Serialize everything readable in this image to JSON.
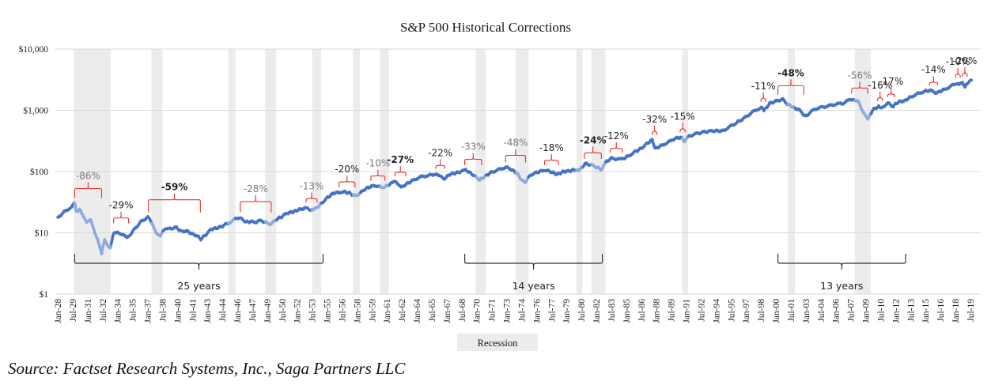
{
  "chart_data": {
    "type": "line",
    "title": "S&P 500 Historical Corrections",
    "xlabel": "",
    "ylabel": "",
    "yscale": "log",
    "ylim": [
      1,
      10000
    ],
    "yticks": [
      {
        "value": 10000,
        "label": "$10,000"
      },
      {
        "value": 1000,
        "label": "$1,000"
      },
      {
        "value": 100,
        "label": "$100"
      },
      {
        "value": 10,
        "label": "$10"
      },
      {
        "value": 1,
        "label": "$1"
      }
    ],
    "xlim": [
      1928.0,
      2019.5
    ],
    "xtick_labels": [
      "Jan-28",
      "Jul-29",
      "Jan-31",
      "Jul-32",
      "Jan-34",
      "Jul-35",
      "Jan-37",
      "Jul-38",
      "Jan-40",
      "Jul-41",
      "Jan-43",
      "Jul-44",
      "Jan-46",
      "Jul-47",
      "Jan-49",
      "Jul-50",
      "Jan-52",
      "Jul-53",
      "Jan-55",
      "Jul-56",
      "Jan-58",
      "Jul-59",
      "Jan-61",
      "Jul-62",
      "Jan-64",
      "Jul-65",
      "Jan-67",
      "Jul-68",
      "Jan-70",
      "Jul-71",
      "Jan-73",
      "Jul-74",
      "Jan-76",
      "Jul-77",
      "Jan-79",
      "Jul-80",
      "Jan-82",
      "Jul-83",
      "Jan-85",
      "Jul-86",
      "Jan-88",
      "Jul-89",
      "Jan-91",
      "Jul-92",
      "Jan-94",
      "Jul-95",
      "Jan-97",
      "Jul-98",
      "Jan-00",
      "Jul-01",
      "Jan-03",
      "Jul-04",
      "Jan-06",
      "Jul-07",
      "Jan-09",
      "Jul-10",
      "Jan-12",
      "Jul-13",
      "Jan-15",
      "Jul-16",
      "Jan-18",
      "Jul-19"
    ],
    "grid": true,
    "legend": {
      "position": "bottom-center",
      "entries": [
        {
          "label": "Recession",
          "color": "#ececec"
        }
      ]
    },
    "series": [
      {
        "name": "S&P 500",
        "color": "#4472c4",
        "drawdown_color": "#8ea9db",
        "points": [
          [
            1928.0,
            17.5
          ],
          [
            1928.5,
            21
          ],
          [
            1929.0,
            24
          ],
          [
            1929.4,
            27
          ],
          [
            1929.7,
            31
          ],
          [
            1929.85,
            22
          ],
          [
            1930.2,
            24
          ],
          [
            1930.5,
            20
          ],
          [
            1930.9,
            15
          ],
          [
            1931.3,
            16
          ],
          [
            1931.7,
            10
          ],
          [
            1932.0,
            8
          ],
          [
            1932.4,
            4.5
          ],
          [
            1932.7,
            8
          ],
          [
            1933.0,
            6
          ],
          [
            1933.3,
            5.8
          ],
          [
            1933.6,
            10
          ],
          [
            1934.0,
            10.5
          ],
          [
            1934.4,
            9.5
          ],
          [
            1934.9,
            8.5
          ],
          [
            1935.3,
            9.5
          ],
          [
            1935.8,
            12
          ],
          [
            1936.3,
            15
          ],
          [
            1936.8,
            17
          ],
          [
            1937.1,
            18
          ],
          [
            1937.5,
            14
          ],
          [
            1937.9,
            10
          ],
          [
            1938.3,
            9
          ],
          [
            1938.8,
            12
          ],
          [
            1939.3,
            11.5
          ],
          [
            1939.8,
            12.5
          ],
          [
            1940.4,
            10.5
          ],
          [
            1940.9,
            10.8
          ],
          [
            1941.5,
            9.5
          ],
          [
            1942.0,
            9
          ],
          [
            1942.3,
            7.8
          ],
          [
            1942.9,
            9.5
          ],
          [
            1943.4,
            11.5
          ],
          [
            1944.0,
            12
          ],
          [
            1944.6,
            13
          ],
          [
            1945.3,
            15
          ],
          [
            1946.0,
            17.5
          ],
          [
            1946.4,
            18
          ],
          [
            1946.8,
            15
          ],
          [
            1947.4,
            15.2
          ],
          [
            1947.9,
            15
          ],
          [
            1948.4,
            16
          ],
          [
            1948.9,
            14.5
          ],
          [
            1949.4,
            14
          ],
          [
            1949.9,
            16.5
          ],
          [
            1950.5,
            18.5
          ],
          [
            1951.0,
            21
          ],
          [
            1951.6,
            22
          ],
          [
            1952.2,
            24
          ],
          [
            1952.8,
            25
          ],
          [
            1953.0,
            25.5
          ],
          [
            1953.5,
            23
          ],
          [
            1953.9,
            25
          ],
          [
            1954.5,
            31
          ],
          [
            1955.0,
            37
          ],
          [
            1955.6,
            44
          ],
          [
            1956.2,
            46
          ],
          [
            1956.6,
            47
          ],
          [
            1957.2,
            45
          ],
          [
            1957.8,
            40
          ],
          [
            1958.3,
            44
          ],
          [
            1958.8,
            52
          ],
          [
            1959.4,
            57
          ],
          [
            1959.9,
            59
          ],
          [
            1960.4,
            55
          ],
          [
            1960.9,
            57
          ],
          [
            1961.5,
            65
          ],
          [
            1961.9,
            70
          ],
          [
            1962.4,
            55
          ],
          [
            1962.9,
            62
          ],
          [
            1963.5,
            70
          ],
          [
            1964.2,
            80
          ],
          [
            1964.9,
            85
          ],
          [
            1965.6,
            88
          ],
          [
            1966.0,
            93
          ],
          [
            1966.7,
            75
          ],
          [
            1967.3,
            90
          ],
          [
            1967.9,
            95
          ],
          [
            1968.5,
            100
          ],
          [
            1968.9,
            106
          ],
          [
            1969.5,
            92
          ],
          [
            1970.3,
            73
          ],
          [
            1970.9,
            85
          ],
          [
            1971.5,
            98
          ],
          [
            1972.2,
            107
          ],
          [
            1972.9,
            118
          ],
          [
            1973.4,
            110
          ],
          [
            1974.0,
            95
          ],
          [
            1974.6,
            70
          ],
          [
            1974.9,
            68
          ],
          [
            1975.4,
            88
          ],
          [
            1975.9,
            95
          ],
          [
            1976.5,
            102
          ],
          [
            1976.9,
            106
          ],
          [
            1977.5,
            98
          ],
          [
            1978.1,
            90
          ],
          [
            1978.7,
            100
          ],
          [
            1979.3,
            102
          ],
          [
            1979.9,
            108
          ],
          [
            1980.3,
            105
          ],
          [
            1980.9,
            135
          ],
          [
            1981.4,
            130
          ],
          [
            1981.9,
            120
          ],
          [
            1982.5,
            108
          ],
          [
            1982.9,
            140
          ],
          [
            1983.5,
            165
          ],
          [
            1984.2,
            160
          ],
          [
            1984.6,
            158
          ],
          [
            1985.2,
            180
          ],
          [
            1985.9,
            210
          ],
          [
            1986.5,
            240
          ],
          [
            1987.0,
            280
          ],
          [
            1987.6,
            330
          ],
          [
            1987.9,
            235
          ],
          [
            1988.5,
            265
          ],
          [
            1989.2,
            300
          ],
          [
            1989.9,
            350
          ],
          [
            1990.5,
            360
          ],
          [
            1990.8,
            310
          ],
          [
            1991.3,
            380
          ],
          [
            1992.0,
            415
          ],
          [
            1993.0,
            450
          ],
          [
            1994.0,
            465
          ],
          [
            1994.6,
            455
          ],
          [
            1995.3,
            530
          ],
          [
            1996.0,
            620
          ],
          [
            1996.8,
            740
          ],
          [
            1997.5,
            900
          ],
          [
            1998.2,
            1050
          ],
          [
            1998.6,
            1150
          ],
          [
            1998.8,
            990
          ],
          [
            1999.4,
            1300
          ],
          [
            2000.2,
            1450
          ],
          [
            2000.7,
            1500
          ],
          [
            2001.2,
            1250
          ],
          [
            2001.8,
            1100
          ],
          [
            2002.4,
            1000
          ],
          [
            2002.8,
            840
          ],
          [
            2003.2,
            850
          ],
          [
            2003.9,
            1050
          ],
          [
            2004.6,
            1120
          ],
          [
            2005.3,
            1180
          ],
          [
            2006.0,
            1260
          ],
          [
            2006.7,
            1300
          ],
          [
            2007.4,
            1480
          ],
          [
            2007.8,
            1520
          ],
          [
            2008.3,
            1350
          ],
          [
            2008.8,
            900
          ],
          [
            2009.2,
            700
          ],
          [
            2009.7,
            1020
          ],
          [
            2010.3,
            1150
          ],
          [
            2010.5,
            1050
          ],
          [
            2011.2,
            1320
          ],
          [
            2011.7,
            1150
          ],
          [
            2012.3,
            1380
          ],
          [
            2012.9,
            1420
          ],
          [
            2013.5,
            1650
          ],
          [
            2014.2,
            1850
          ],
          [
            2014.9,
            2050
          ],
          [
            2015.5,
            2100
          ],
          [
            2015.9,
            1930
          ],
          [
            2016.2,
            1950
          ],
          [
            2016.8,
            2150
          ],
          [
            2017.5,
            2450
          ],
          [
            2018.0,
            2750
          ],
          [
            2018.3,
            2600
          ],
          [
            2018.7,
            2900
          ],
          [
            2018.95,
            2400
          ],
          [
            2019.3,
            2900
          ],
          [
            2019.6,
            3100
          ]
        ]
      }
    ],
    "recessions": [
      [
        1929.6,
        1933.3
      ],
      [
        1937.4,
        1938.5
      ],
      [
        1945.1,
        1945.8
      ],
      [
        1948.8,
        1949.9
      ],
      [
        1953.5,
        1954.4
      ],
      [
        1957.6,
        1958.3
      ],
      [
        1960.3,
        1961.2
      ],
      [
        1969.9,
        1970.9
      ],
      [
        1973.9,
        1975.2
      ],
      [
        1980.0,
        1980.6
      ],
      [
        1981.5,
        1982.9
      ],
      [
        1990.6,
        1991.2
      ],
      [
        2001.2,
        2001.9
      ],
      [
        2007.9,
        2009.5
      ]
    ],
    "annotations": [
      {
        "text": "-86%",
        "style": "faded",
        "from": 1929.7,
        "to": 1932.4,
        "price": 31
      },
      {
        "text": "-29%",
        "style": "normal",
        "from": 1933.6,
        "to": 1935.1,
        "price": 12
      },
      {
        "text": "-59%",
        "style": "bold",
        "from": 1937.1,
        "to": 1942.3,
        "price": 18
      },
      {
        "text": "-28%",
        "style": "faded",
        "from": 1946.3,
        "to": 1949.4,
        "price": 18
      },
      {
        "text": "-13%",
        "style": "faded",
        "from": 1952.9,
        "to": 1954.0,
        "price": 26
      },
      {
        "text": "-20%",
        "style": "normal",
        "from": 1956.2,
        "to": 1957.8,
        "price": 46
      },
      {
        "text": "-10%",
        "style": "faded",
        "from": 1959.4,
        "to": 1960.8,
        "price": 59
      },
      {
        "text": "-27%",
        "style": "bold",
        "from": 1961.8,
        "to": 1962.9,
        "price": 70
      },
      {
        "text": "-22%",
        "style": "normal",
        "from": 1965.9,
        "to": 1966.8,
        "price": 93
      },
      {
        "text": "-33%",
        "style": "faded",
        "from": 1968.8,
        "to": 1970.5,
        "price": 106
      },
      {
        "text": "-48%",
        "style": "faded",
        "from": 1972.9,
        "to": 1974.9,
        "price": 118
      },
      {
        "text": "-18%",
        "style": "normal",
        "from": 1976.8,
        "to": 1978.2,
        "price": 106
      },
      {
        "text": "-24%",
        "style": "bold",
        "from": 1980.8,
        "to": 1982.5,
        "price": 135
      },
      {
        "text": "-12%",
        "style": "normal",
        "from": 1983.4,
        "to": 1984.6,
        "price": 170
      },
      {
        "text": "-32%",
        "style": "normal",
        "from": 1987.6,
        "to": 1987.95,
        "price": 330
      },
      {
        "text": "-15%",
        "style": "normal",
        "from": 1990.4,
        "to": 1990.9,
        "price": 365
      },
      {
        "text": "-11%",
        "style": "normal",
        "from": 1998.5,
        "to": 1998.8,
        "price": 1150
      },
      {
        "text": "-48%",
        "style": "bold",
        "from": 2000.2,
        "to": 2002.8,
        "price": 1500
      },
      {
        "text": "-56%",
        "style": "faded",
        "from": 2007.6,
        "to": 2009.2,
        "price": 1560
      },
      {
        "text": "-16%",
        "style": "normal",
        "from": 2010.2,
        "to": 2010.6,
        "price": 1180
      },
      {
        "text": "-17%",
        "style": "normal",
        "from": 2011.2,
        "to": 2011.9,
        "price": 1360
      },
      {
        "text": "-14%",
        "style": "normal",
        "from": 2015.4,
        "to": 2016.2,
        "price": 2120
      },
      {
        "text": "-10%",
        "style": "normal",
        "from": 2018.0,
        "to": 2018.25,
        "price": 2850
      },
      {
        "text": "-20%",
        "style": "normal",
        "from": 2018.7,
        "to": 2018.95,
        "price": 2950
      }
    ],
    "spans": [
      {
        "text": "25 years",
        "from": 1929.7,
        "to": 1954.6
      },
      {
        "text": "14 years",
        "from": 1968.8,
        "to": 1982.6
      },
      {
        "text": "13 years",
        "from": 2000.2,
        "to": 2013.0
      }
    ]
  },
  "source_note": "Source: Factset Research Systems, Inc., Saga Partners LLC"
}
